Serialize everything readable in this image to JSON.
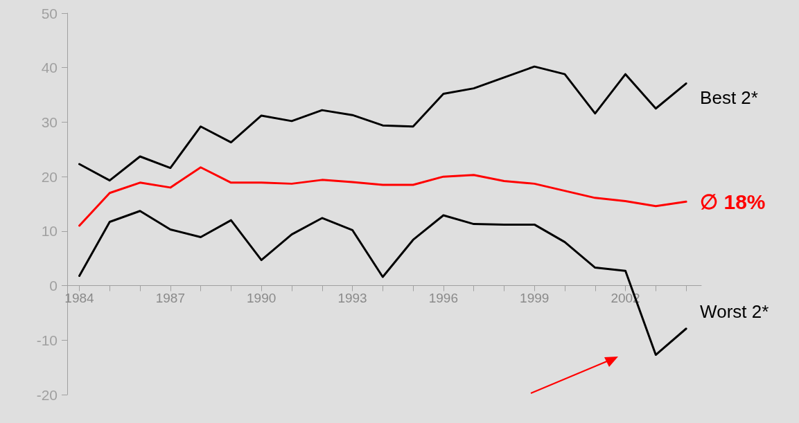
{
  "chart_data": {
    "type": "line",
    "x": [
      1984,
      1985,
      1986,
      1987,
      1988,
      1989,
      1990,
      1991,
      1992,
      1993,
      1994,
      1995,
      1996,
      1997,
      1998,
      1999,
      2000,
      2001,
      2002,
      2003,
      2004
    ],
    "series": [
      {
        "name": "Best 2*",
        "color": "#000000",
        "values": [
          22.3,
          19.3,
          23.7,
          21.6,
          29.2,
          26.3,
          31.2,
          30.2,
          32.2,
          31.3,
          29.4,
          29.2,
          35.2,
          36.2,
          38.2,
          40.2,
          38.8,
          31.6,
          38.8,
          32.5,
          37.1
        ]
      },
      {
        "name": "∅ 18%",
        "color": "#ff0000",
        "values": [
          11,
          17,
          18.9,
          18,
          21.7,
          18.9,
          18.9,
          18.7,
          19.4,
          19,
          18.5,
          18.5,
          20,
          20.3,
          19.2,
          18.7,
          17.4,
          16.1,
          15.5,
          14.6,
          15.4
        ]
      },
      {
        "name": "Worst 2*",
        "color": "#000000",
        "values": [
          1.8,
          11.7,
          13.7,
          10.3,
          8.9,
          12,
          4.7,
          9.4,
          12.4,
          10.2,
          1.6,
          8.4,
          12.9,
          11.3,
          11.2,
          11.2,
          8,
          3.3,
          2.7,
          -12.7,
          -7.9
        ]
      }
    ],
    "xlim": [
      1983.6,
      2004.5
    ],
    "xticks": [
      1984,
      {
        "value": 1985,
        "label": null
      },
      {
        "value": 1986,
        "label": null
      },
      1987,
      {
        "value": 1988,
        "label": null
      },
      {
        "value": 1989,
        "label": null
      },
      1990,
      {
        "value": 1991,
        "label": null
      },
      {
        "value": 1992,
        "label": null
      },
      1993,
      {
        "value": 1994,
        "label": null
      },
      {
        "value": 1995,
        "label": null
      },
      1996,
      {
        "value": 1997,
        "label": null
      },
      {
        "value": 1998,
        "label": null
      },
      1999,
      {
        "value": 2000,
        "label": null
      },
      {
        "value": 2001,
        "label": null
      },
      2002,
      {
        "value": 2003,
        "label": null
      },
      {
        "value": 2004,
        "label": null
      }
    ],
    "ylim": [
      -20,
      50
    ],
    "yticks": [
      -20,
      -10,
      0,
      10,
      20,
      30,
      40,
      50
    ],
    "legend": false,
    "marker": "none",
    "line_style": "solid"
  }
}
